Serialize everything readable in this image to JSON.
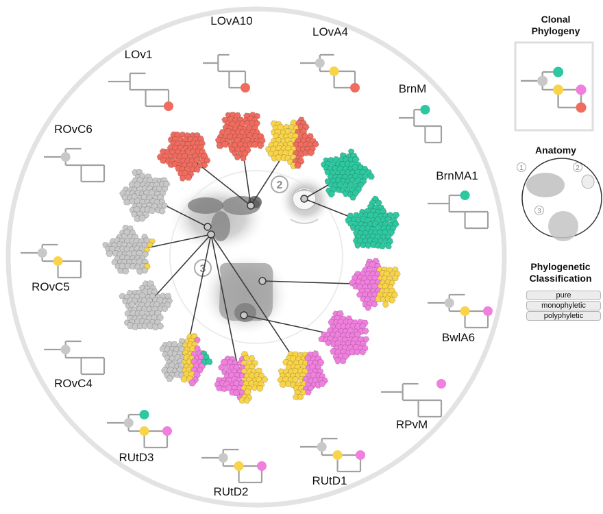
{
  "samples": [
    {
      "id": "LOvA10",
      "label": "LOvA10",
      "clones": [
        [
          "red"
        ]
      ]
    },
    {
      "id": "LOvA4",
      "label": "LOvA4",
      "clones": [
        [
          "gray"
        ],
        [
          "yellow"
        ],
        [
          "red"
        ]
      ]
    },
    {
      "id": "BrnM",
      "label": "BrnM",
      "clones": [
        [
          "teal"
        ]
      ]
    },
    {
      "id": "BrnMA1",
      "label": "BrnMA1",
      "clones": [
        [
          "teal"
        ]
      ]
    },
    {
      "id": "BwlA6",
      "label": "BwlA6",
      "clones": [
        [
          "gray"
        ],
        [
          "yellow"
        ],
        [
          "pink"
        ]
      ]
    },
    {
      "id": "RPvM",
      "label": "RPvM",
      "clones": [
        [
          "pink"
        ]
      ]
    },
    {
      "id": "RUtD1",
      "label": "RUtD1",
      "clones": [
        [
          "gray"
        ],
        [
          "yellow"
        ],
        [
          "pink"
        ]
      ]
    },
    {
      "id": "RUtD2",
      "label": "RUtD2",
      "clones": [
        [
          "gray"
        ],
        [
          "yellow"
        ],
        [
          "pink"
        ]
      ]
    },
    {
      "id": "RUtD3",
      "label": "RUtD3",
      "clones": [
        [
          "gray"
        ],
        [
          "teal"
        ],
        [
          "yellow"
        ],
        [
          "pink"
        ]
      ]
    },
    {
      "id": "ROvC4",
      "label": "ROvC4",
      "clones": [
        [
          "gray"
        ]
      ]
    },
    {
      "id": "ROvC5",
      "label": "ROvC5",
      "clones": [
        [
          "gray"
        ],
        [
          "yellow"
        ]
      ]
    },
    {
      "id": "ROvC6",
      "label": "ROvC6",
      "clones": [
        [
          "gray"
        ]
      ]
    },
    {
      "id": "LOv1",
      "label": "LOv1",
      "clones": [
        [
          "red"
        ]
      ]
    }
  ],
  "blobs": [
    {
      "sample": "LOvA10",
      "composition": [
        [
          "red",
          1.0
        ]
      ]
    },
    {
      "sample": "LOvA4",
      "composition": [
        [
          "yellow",
          0.6
        ],
        [
          "red",
          0.4
        ]
      ]
    },
    {
      "sample": "BrnM",
      "composition": [
        [
          "teal",
          1.0
        ]
      ]
    },
    {
      "sample": "BrnMA1",
      "composition": [
        [
          "teal",
          1.0
        ]
      ]
    },
    {
      "sample": "BwlA6",
      "composition": [
        [
          "pink",
          0.6
        ],
        [
          "yellow",
          0.4
        ]
      ]
    },
    {
      "sample": "RPvM",
      "composition": [
        [
          "pink",
          1.0
        ]
      ]
    },
    {
      "sample": "RUtD1",
      "composition": [
        [
          "yellow",
          0.6
        ],
        [
          "pink",
          0.4
        ]
      ]
    },
    {
      "sample": "RUtD2",
      "composition": [
        [
          "pink",
          0.55
        ],
        [
          "yellow",
          0.45
        ]
      ]
    },
    {
      "sample": "RUtD3",
      "composition": [
        [
          "gray",
          0.45
        ],
        [
          "yellow",
          0.3
        ],
        [
          "pink",
          0.2
        ],
        [
          "teal",
          0.05
        ]
      ]
    },
    {
      "sample": "ROvC4",
      "composition": [
        [
          "gray",
          1.0
        ]
      ]
    },
    {
      "sample": "ROvC5",
      "composition": [
        [
          "gray",
          0.95
        ],
        [
          "yellow",
          0.05
        ]
      ]
    },
    {
      "sample": "ROvC6",
      "composition": [
        [
          "gray",
          1.0
        ]
      ]
    },
    {
      "sample": "LOv1",
      "composition": [
        [
          "red",
          1.0
        ]
      ]
    }
  ],
  "colors": {
    "red": "#f06c5f",
    "yellow": "#f9d448",
    "teal": "#2ec8a0",
    "pink": "#f07fde",
    "gray": "#c8c8c8",
    "tree_line": "#a0a0a0",
    "ring": "#e6e6e6"
  },
  "anatomy_markers": [
    "2",
    "3"
  ],
  "legend": {
    "phylogeny_title": "Clonal Phylogeny",
    "anatomy_title": "Anatomy",
    "anatomy_markers": [
      "1",
      "2",
      "3"
    ],
    "classification_title": "Phylogenetic Classification",
    "classifications": [
      "pure",
      "monophyletic",
      "polyphyletic"
    ]
  }
}
